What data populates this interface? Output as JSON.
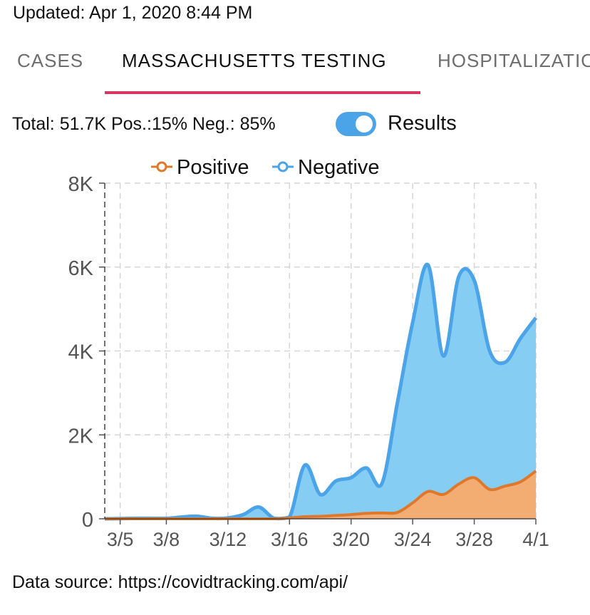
{
  "header": {
    "updated": "Updated: Apr 1, 2020 8:44 PM"
  },
  "tabs": [
    {
      "label": "CASES",
      "active": false
    },
    {
      "label": "MASSACHUSETTS TESTING",
      "active": true
    },
    {
      "label": "HOSPITALIZATIONS",
      "active": false
    }
  ],
  "summary": {
    "text": "Total: 51.7K Pos.:15% Neg.: 85%"
  },
  "toggle": {
    "label": "Results",
    "on": true
  },
  "colors": {
    "positive": "#e0782c",
    "positive_fill": "#f3ac72",
    "negative": "#4ba3e8",
    "negative_fill": "#85cdf2",
    "tab_indicator": "#d6365f"
  },
  "chart_data": {
    "type": "area",
    "stacked": true,
    "x": [
      "3/4",
      "3/5",
      "3/6",
      "3/7",
      "3/8",
      "3/9",
      "3/10",
      "3/11",
      "3/12",
      "3/13",
      "3/14",
      "3/15",
      "3/16",
      "3/17",
      "3/18",
      "3/19",
      "3/20",
      "3/21",
      "3/22",
      "3/23",
      "3/24",
      "3/25",
      "3/26",
      "3/27",
      "3/28",
      "3/29",
      "3/30",
      "3/31",
      "4/1"
    ],
    "xticks": [
      "3/5",
      "3/8",
      "3/12",
      "3/16",
      "3/20",
      "3/24",
      "3/28",
      "4/1"
    ],
    "yticks": [
      0,
      2000,
      4000,
      6000,
      8000
    ],
    "ytick_labels": [
      "0",
      "2K",
      "4K",
      "6K",
      "8K"
    ],
    "ylim": [
      0,
      8000
    ],
    "grid": true,
    "legend": "top",
    "series": [
      {
        "name": "Positive",
        "values": [
          0,
          0,
          0,
          0,
          0,
          0,
          0,
          0,
          0,
          0,
          0,
          0,
          20,
          50,
          60,
          80,
          100,
          130,
          140,
          150,
          380,
          650,
          580,
          830,
          980,
          700,
          780,
          880,
          1140
        ]
      },
      {
        "name": "Negative",
        "values": [
          0,
          5,
          10,
          10,
          10,
          40,
          60,
          10,
          20,
          100,
          280,
          10,
          20,
          1230,
          520,
          820,
          880,
          1080,
          700,
          2600,
          4300,
          5400,
          3300,
          4950,
          4700,
          3300,
          2950,
          3420,
          3650
        ]
      }
    ]
  },
  "footer": {
    "source": "Data source: https://covidtracking.com/api/"
  }
}
